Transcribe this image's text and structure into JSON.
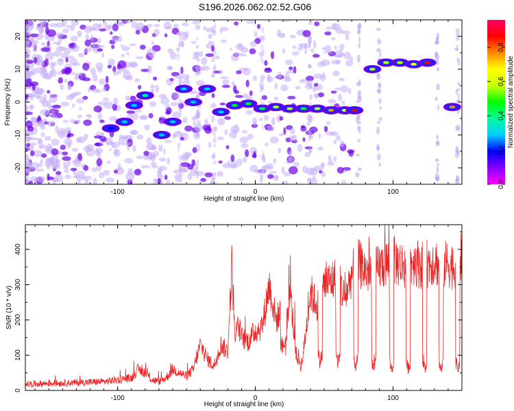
{
  "title": "S196.2026.062.02.52.G06",
  "colors": {
    "line": "#ee2222",
    "frame": "#000000",
    "ridge_low": "#6a00e8",
    "ridge_mid": "#0033ff",
    "ridge_high": "#00d0ff",
    "ridge_peak": "#ee0000"
  },
  "chart_data": [
    {
      "type": "heatmap",
      "name": "spectrogram",
      "xlabel": "Height of straight line (km)",
      "ylabel": "Frequency (Hz)",
      "xlim": [
        -167,
        150
      ],
      "ylim": [
        -25,
        25
      ],
      "xticks": [
        -100,
        0,
        100
      ],
      "yticks": [
        -20,
        -10,
        0,
        10,
        20
      ],
      "grid": false,
      "colorbar": {
        "label": "Normalized spectral amplitude",
        "range": [
          0.0,
          0.96
        ],
        "ticks": [
          "0.0",
          "0.2",
          "0.4",
          "0.6",
          "0.8"
        ],
        "tick_values": [
          0.0,
          0.2,
          0.4,
          0.6,
          0.8
        ],
        "stops": [
          "#ff00ff",
          "#8800ff",
          "#0000ff",
          "#00ccff",
          "#00ff99",
          "#00ff00",
          "#ccff00",
          "#ffff00",
          "#ff8800",
          "#ff0000",
          "#ff0066"
        ]
      },
      "ridge": [
        {
          "x": -105,
          "f": -8,
          "a": 0.2
        },
        {
          "x": -95,
          "f": -6,
          "a": 0.25
        },
        {
          "x": -88,
          "f": -1,
          "a": 0.3
        },
        {
          "x": -80,
          "f": 2,
          "a": 0.35
        },
        {
          "x": -68,
          "f": -10,
          "a": 0.25
        },
        {
          "x": -60,
          "f": -6,
          "a": 0.25
        },
        {
          "x": -52,
          "f": 4,
          "a": 0.3
        },
        {
          "x": -45,
          "f": 0,
          "a": 0.3
        },
        {
          "x": -35,
          "f": 4,
          "a": 0.3
        },
        {
          "x": -25,
          "f": -3,
          "a": 0.3
        },
        {
          "x": -15,
          "f": -1,
          "a": 0.45
        },
        {
          "x": -5,
          "f": -0.5,
          "a": 0.5
        },
        {
          "x": 5,
          "f": -2,
          "a": 0.45
        },
        {
          "x": 15,
          "f": -1.5,
          "a": 0.55
        },
        {
          "x": 25,
          "f": -2,
          "a": 0.6
        },
        {
          "x": 35,
          "f": -2,
          "a": 0.5
        },
        {
          "x": 45,
          "f": -2,
          "a": 0.55
        },
        {
          "x": 55,
          "f": -2.5,
          "a": 0.75
        },
        {
          "x": 65,
          "f": -2.5,
          "a": 0.7
        },
        {
          "x": 72,
          "f": -2.5,
          "a": 0.85
        },
        {
          "x": 85,
          "f": 10,
          "a": 0.6
        },
        {
          "x": 95,
          "f": 12,
          "a": 0.55
        },
        {
          "x": 105,
          "f": 12,
          "a": 0.6
        },
        {
          "x": 115,
          "f": 11.5,
          "a": 0.7
        },
        {
          "x": 125,
          "f": 12,
          "a": 0.9
        },
        {
          "x": 143,
          "f": -1.5,
          "a": 0.8
        }
      ]
    },
    {
      "type": "line",
      "name": "snr",
      "xlabel": "Height of straight line (km)",
      "ylabel": "SNR (10 * v/v)",
      "xlim": [
        -167,
        150
      ],
      "ylim": [
        0,
        470
      ],
      "xticks": [
        -100,
        0,
        100
      ],
      "yticks": [
        0,
        100,
        200,
        300,
        400
      ],
      "grid": false,
      "series": [
        {
          "name": "SNR",
          "x": [
            -167,
            -150,
            -130,
            -110,
            -100,
            -90,
            -85,
            -80,
            -75,
            -70,
            -65,
            -60,
            -55,
            -50,
            -45,
            -40,
            -35,
            -30,
            -25,
            -20,
            -17,
            -15,
            -12,
            -10,
            -5,
            0,
            5,
            8,
            10,
            15,
            20,
            22,
            25,
            30,
            35,
            40,
            45,
            50,
            55,
            60,
            65,
            70,
            75,
            80,
            85,
            90,
            95,
            100,
            105,
            110,
            115,
            120,
            125,
            130,
            135,
            140,
            145,
            150
          ],
          "y": [
            18,
            20,
            22,
            25,
            30,
            35,
            60,
            50,
            30,
            25,
            35,
            60,
            50,
            40,
            60,
            130,
            90,
            70,
            130,
            110,
            360,
            160,
            180,
            150,
            140,
            170,
            180,
            250,
            300,
            200,
            230,
            120,
            290,
            90,
            110,
            280,
            240,
            300,
            310,
            320,
            260,
            330,
            360,
            340,
            330,
            350,
            360,
            370,
            360,
            350,
            370,
            355,
            360,
            370,
            350,
            360,
            350,
            380
          ]
        }
      ],
      "dropouts": [
        {
          "x": 20,
          "y": 120
        },
        {
          "x": 33,
          "y": 70
        },
        {
          "x": 47,
          "y": 80
        },
        {
          "x": 60,
          "y": 80
        },
        {
          "x": 73,
          "y": 70
        },
        {
          "x": 86,
          "y": 65
        },
        {
          "x": 99,
          "y": 60
        },
        {
          "x": 111,
          "y": 60
        },
        {
          "x": 123,
          "y": 60
        },
        {
          "x": 135,
          "y": 55
        },
        {
          "x": 147,
          "y": 60
        }
      ]
    }
  ]
}
